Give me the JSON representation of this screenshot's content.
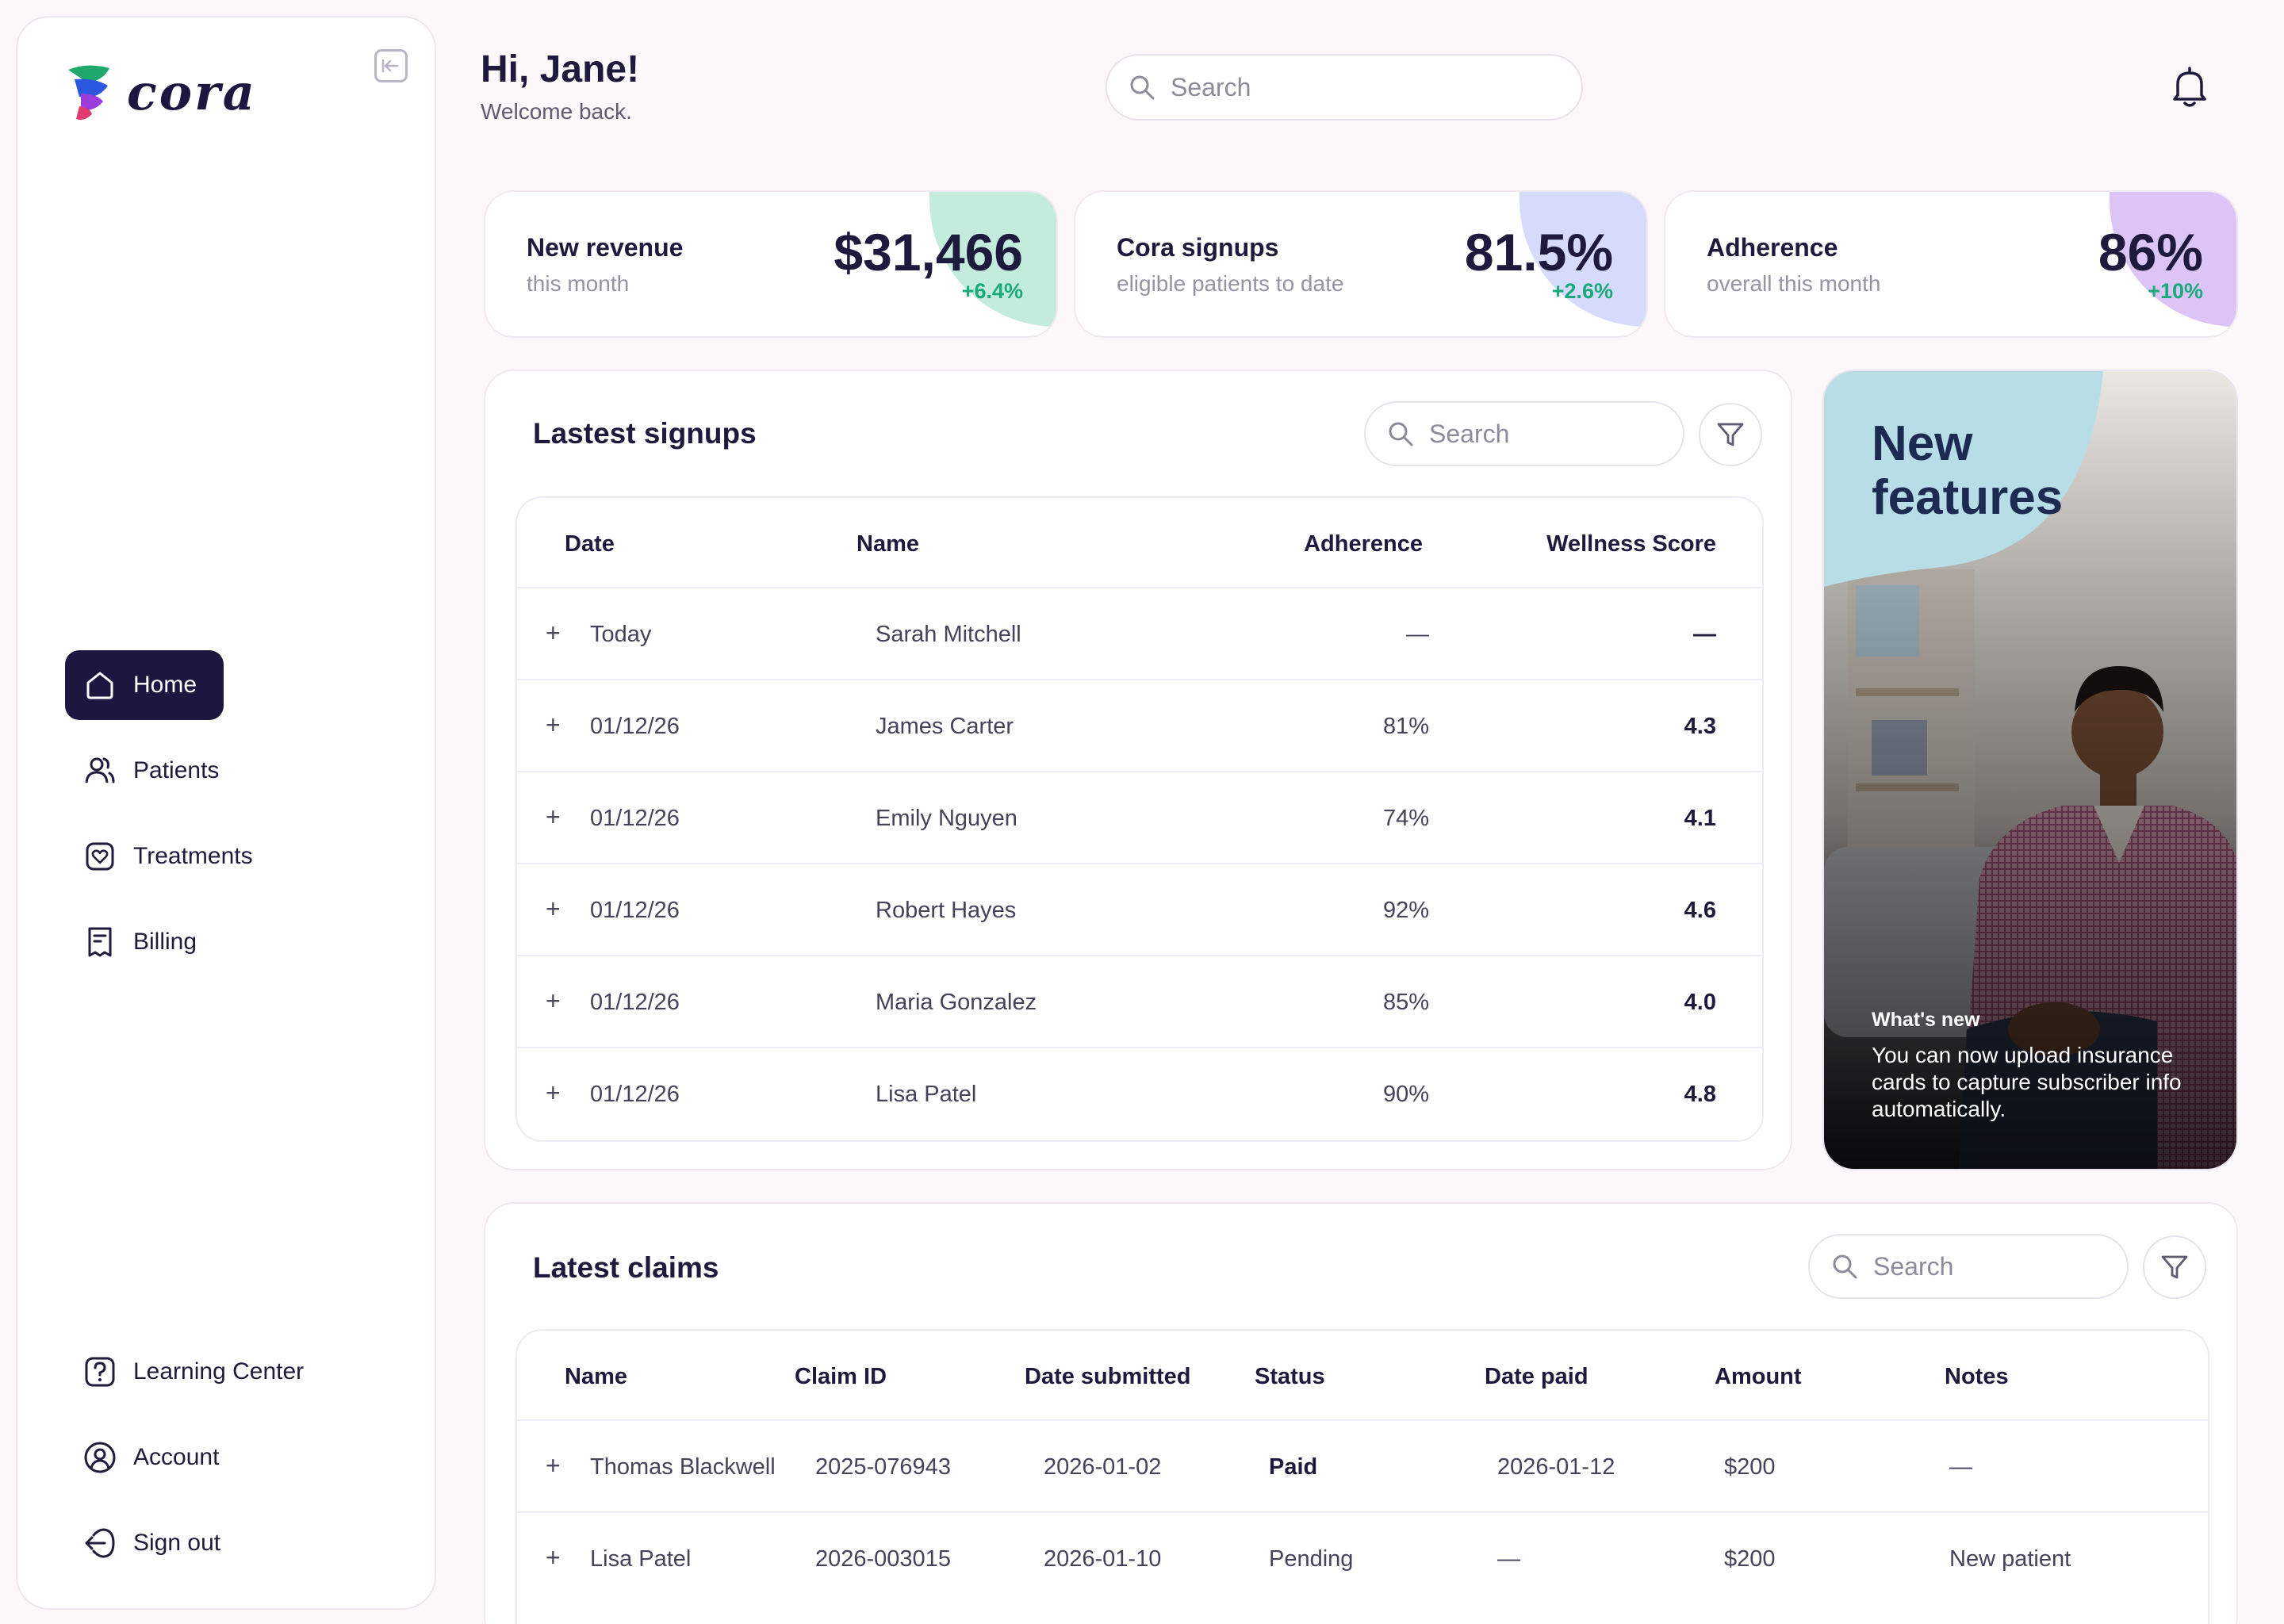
{
  "app": {
    "logo_text": "cora"
  },
  "sidebar": {
    "nav": [
      {
        "label": "Home",
        "icon": "home-icon",
        "active": true
      },
      {
        "label": "Patients",
        "icon": "users-icon"
      },
      {
        "label": "Treatments",
        "icon": "heart-icon"
      },
      {
        "label": "Billing",
        "icon": "receipt-icon"
      }
    ],
    "footer": [
      {
        "label": "Learning Center",
        "icon": "help-icon"
      },
      {
        "label": "Account",
        "icon": "user-circle-icon"
      },
      {
        "label": "Sign out",
        "icon": "sign-out-icon"
      }
    ]
  },
  "header": {
    "greeting": "Hi, Jane!",
    "subtitle": "Welcome back.",
    "search_placeholder": "Search"
  },
  "stats": [
    {
      "title": "New revenue",
      "subtitle": "this month",
      "value": "$31,466",
      "delta": "+6.4%",
      "accent": "#c4ecdc"
    },
    {
      "title": "Cora signups",
      "subtitle": "eligible patients to date",
      "value": "81.5%",
      "delta": "+2.6%",
      "accent": "#d7dbfb"
    },
    {
      "title": "Adherence",
      "subtitle": "overall this month",
      "value": "86%",
      "delta": "+10%",
      "accent": "#dcc4f6"
    }
  ],
  "signups": {
    "title": "Lastest signups",
    "search_placeholder": "Search",
    "columns": [
      "Date",
      "Name",
      "Adherence",
      "Wellness Score"
    ],
    "rows": [
      {
        "date": "Today",
        "name": "Sarah Mitchell",
        "adherence": "—",
        "score": "—"
      },
      {
        "date": "01/12/26",
        "name": "James Carter",
        "adherence": "81%",
        "score": "4.3"
      },
      {
        "date": "01/12/26",
        "name": "Emily Nguyen",
        "adherence": "74%",
        "score": "4.1"
      },
      {
        "date": "01/12/26",
        "name": "Robert Hayes",
        "adherence": "92%",
        "score": "4.6"
      },
      {
        "date": "01/12/26",
        "name": "Maria Gonzalez",
        "adherence": "85%",
        "score": "4.0"
      },
      {
        "date": "01/12/26",
        "name": "Lisa Patel",
        "adherence": "90%",
        "score": "4.8"
      }
    ]
  },
  "promo": {
    "title_line1": "New",
    "title_line2": "features",
    "kicker": "What's new",
    "text": "You can now upload insurance cards to capture subscriber info automatically."
  },
  "claims": {
    "title": "Latest claims",
    "search_placeholder": "Search",
    "columns": [
      "Name",
      "Claim ID",
      "Date submitted",
      "Status",
      "Date paid",
      "Amount",
      "Notes"
    ],
    "rows": [
      {
        "name": "Thomas Blackwell",
        "claim_id": "2025-076943",
        "submitted": "2026-01-02",
        "status": "Paid",
        "paid": "2026-01-12",
        "amount": "$200",
        "notes": "—"
      },
      {
        "name": "Lisa Patel",
        "claim_id": "2026-003015",
        "submitted": "2026-01-10",
        "status": "Pending",
        "paid": "—",
        "amount": "$200",
        "notes": "New patient"
      }
    ]
  },
  "colors": {
    "brand_dark": "#1d1640",
    "positive": "#19a97a",
    "promo_blob": "#b7dde6"
  }
}
